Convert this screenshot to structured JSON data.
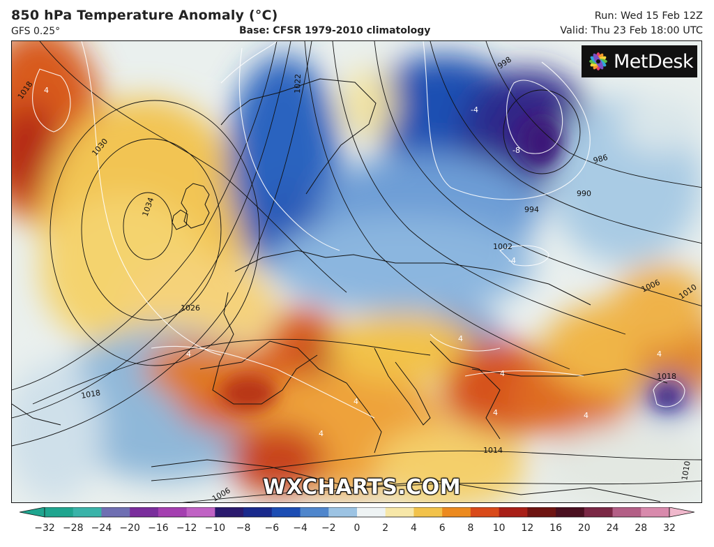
{
  "header": {
    "title": "850 hPa Temperature Anomaly (°C)",
    "model": "GFS 0.25°",
    "base": "Base: CFSR 1979-2010 climatology",
    "run": "Run: Wed 15 Feb 12Z",
    "valid": "Valid: Thu 23 Feb 18:00 UTC"
  },
  "logo": {
    "text": "MetDesk",
    "icon": "metdesk-flower-icon"
  },
  "watermark": "WXCHARTS.COM",
  "isobar_labels": [
    "1018",
    "1030",
    "1034",
    "1022",
    "998",
    "986",
    "990",
    "994",
    "1002",
    "1006",
    "1010",
    "1026",
    "1018",
    "1014",
    "1018",
    "1010",
    "1006"
  ],
  "contour_labels": [
    "4",
    "-4",
    "-8",
    "-4",
    "4",
    "4",
    "4",
    "4",
    "4",
    "4",
    "4",
    "4"
  ],
  "colorbar": {
    "ticks": [
      "−32",
      "−28",
      "−24",
      "−20",
      "−16",
      "−12",
      "−10",
      "−8",
      "−6",
      "−4",
      "−2",
      "0",
      "2",
      "4",
      "6",
      "8",
      "10",
      "12",
      "16",
      "20",
      "24",
      "28",
      "32"
    ],
    "colors": [
      "#1fa58f",
      "#3ab3a9",
      "#6f6fb2",
      "#7a2e9c",
      "#a43fb0",
      "#c062c4",
      "#2b1a6e",
      "#1a2a8c",
      "#1c4db3",
      "#4f86cc",
      "#9cc3e3",
      "#eef3f4",
      "#f7e7a8",
      "#f2c24a",
      "#ec8a1f",
      "#d94a1a",
      "#a81f17",
      "#6e1412",
      "#4a1020",
      "#7a2845",
      "#b35f86",
      "#d88aac",
      "#f0b8cc"
    ]
  }
}
